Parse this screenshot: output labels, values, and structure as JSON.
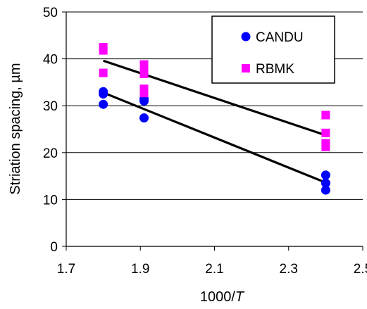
{
  "chart_data": {
    "type": "scatter",
    "title": "",
    "xlabel": "1000/",
    "xlabel_italic": "T",
    "ylabel": "Striation spacing, µm",
    "xlim": [
      1.7,
      2.5
    ],
    "ylim": [
      0,
      50
    ],
    "x_ticks": [
      "1.7",
      "1.9",
      "2.1",
      "2.3",
      "2.5"
    ],
    "y_ticks": [
      "0",
      "10",
      "20",
      "30",
      "40",
      "50"
    ],
    "grid": "horizontal",
    "legend_position": "top-right",
    "series": [
      {
        "name": "CANDU",
        "marker": "circle",
        "color": "#0000ff",
        "points": [
          [
            1.8,
            33.0
          ],
          [
            1.8,
            32.5
          ],
          [
            1.8,
            30.3
          ],
          [
            1.91,
            31.5
          ],
          [
            1.91,
            31.0
          ],
          [
            1.91,
            27.4
          ],
          [
            2.4,
            15.2
          ],
          [
            2.4,
            13.5
          ],
          [
            2.4,
            12.0
          ]
        ],
        "fit": [
          [
            1.8,
            32.8
          ],
          [
            2.4,
            13.6
          ]
        ]
      },
      {
        "name": "RBMK",
        "marker": "square",
        "color": "#ff00ff",
        "points": [
          [
            1.8,
            42.5
          ],
          [
            1.8,
            41.8
          ],
          [
            1.8,
            37.0
          ],
          [
            1.91,
            38.8
          ],
          [
            1.91,
            37.9
          ],
          [
            1.91,
            36.8
          ],
          [
            1.91,
            33.6
          ],
          [
            1.91,
            32.7
          ],
          [
            2.4,
            28.0
          ],
          [
            2.4,
            24.2
          ],
          [
            2.4,
            22.0
          ],
          [
            2.4,
            21.2
          ]
        ],
        "fit": [
          [
            1.8,
            39.6
          ],
          [
            2.4,
            23.7
          ]
        ]
      }
    ],
    "fit_line_color": "#000000"
  }
}
